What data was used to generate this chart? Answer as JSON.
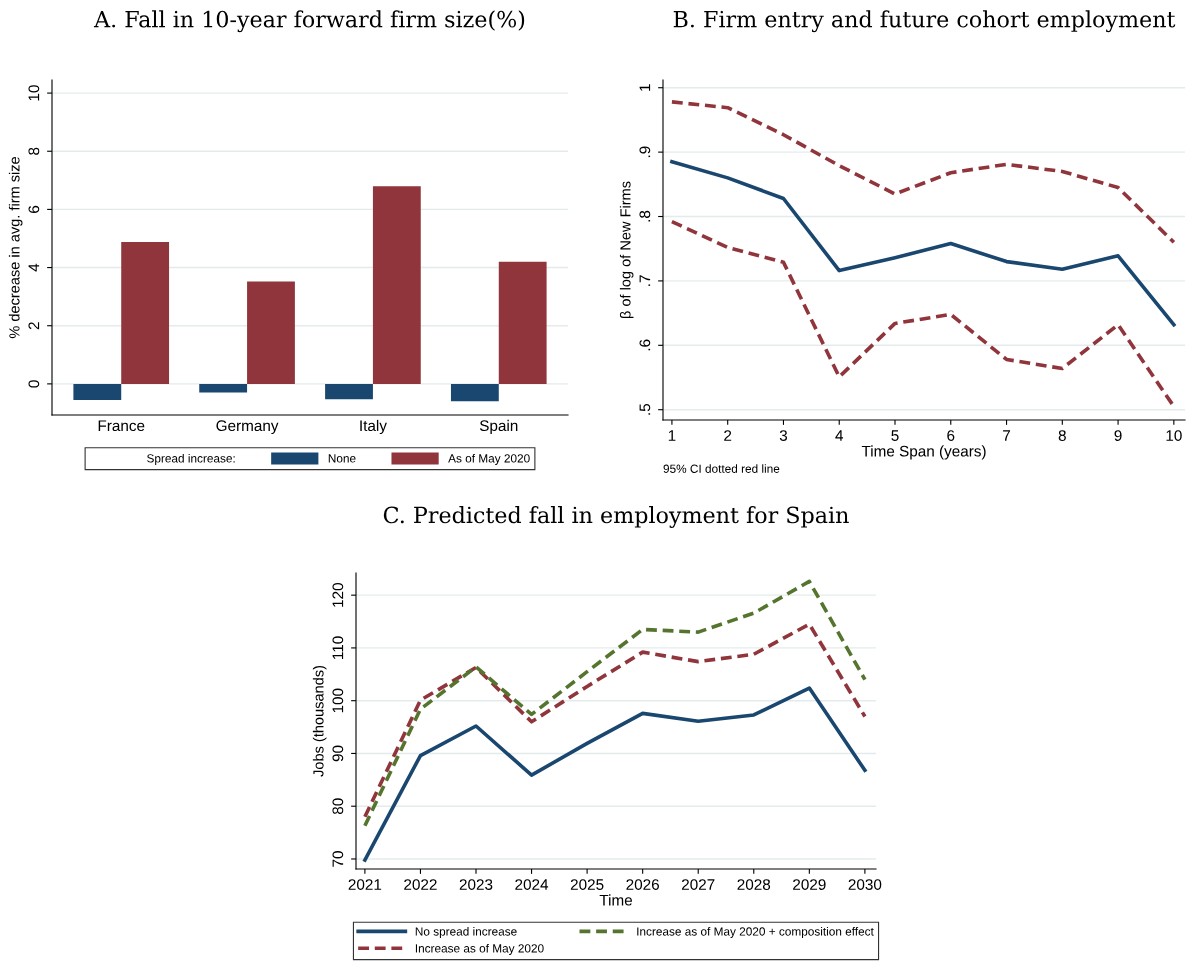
{
  "chart_data": [
    {
      "type": "bar",
      "title": "A. Fall in 10-year forward firm size(%)",
      "ylabel": "% decrease in avg. firm size",
      "categories": [
        "France",
        "Germany",
        "Italy",
        "Spain"
      ],
      "series": [
        {
          "name": "None",
          "color": "#1a476f",
          "values": [
            -0.55,
            -0.3,
            -0.53,
            -0.6
          ]
        },
        {
          "name": "As of May 2020",
          "color": "#90353b",
          "values": [
            4.88,
            3.52,
            6.8,
            4.2
          ]
        }
      ],
      "legend_title": "Spread increase:",
      "legend": "bottom",
      "ylim": [
        -1.07,
        10.45
      ],
      "yticks": [
        0,
        2,
        4,
        6,
        8,
        10
      ],
      "grid": "y"
    },
    {
      "type": "line",
      "title": "B. Firm entry and future cohort employment",
      "xlabel": "Time Span (years)",
      "ylabel": "β of log of New Firms",
      "x": [
        1,
        2,
        3,
        4,
        5,
        6,
        7,
        8,
        9,
        10
      ],
      "series": [
        {
          "color": "#1a476f",
          "line_style": "solid",
          "values": [
            0.885,
            0.86,
            0.828,
            0.716,
            0.736,
            0.758,
            0.73,
            0.718,
            0.739,
            0.632
          ]
        },
        {
          "color": "#90353b",
          "line_style": "dashed",
          "values": [
            0.978,
            0.969,
            0.927,
            0.879,
            0.835,
            0.868,
            0.881,
            0.87,
            0.845,
            0.76
          ]
        },
        {
          "color": "#90353b",
          "line_style": "dashed",
          "values": [
            0.792,
            0.752,
            0.729,
            0.551,
            0.634,
            0.648,
            0.578,
            0.564,
            0.632,
            0.505
          ]
        }
      ],
      "annotations": [
        "95% CI dotted red line"
      ],
      "xlim": [
        0.84,
        10.2
      ],
      "xticks": [
        1,
        2,
        3,
        4,
        5,
        6,
        7,
        8,
        9,
        10
      ],
      "ylim": [
        0.484,
        1.012
      ],
      "yticks": [
        {
          "value": 0.5,
          "label": ".5"
        },
        {
          "value": 0.6,
          "label": ".6"
        },
        {
          "value": 0.7,
          "label": ".7"
        },
        {
          "value": 0.8,
          "label": ".8"
        },
        {
          "value": 0.9,
          "label": ".9"
        },
        {
          "value": 1,
          "label": "1"
        }
      ],
      "grid": "y"
    },
    {
      "type": "line",
      "title": "C. Predicted fall in employment for Spain",
      "xlabel": "Time",
      "ylabel": "Jobs (thousands)",
      "x": [
        2021,
        2022,
        2023,
        2024,
        2025,
        2026,
        2027,
        2028,
        2029,
        2030
      ],
      "series": [
        {
          "name": "No spread increase",
          "color": "#1a476f",
          "line_style": "solid",
          "values": [
            69.8,
            89.6,
            95.2,
            85.9,
            91.9,
            97.6,
            96.1,
            97.3,
            102.4,
            86.8
          ]
        },
        {
          "name": "Increase as of May 2020",
          "color": "#90353b",
          "line_style": "dashed",
          "values": [
            78,
            100.1,
            106.3,
            96,
            102.7,
            109.2,
            107.4,
            108.8,
            114.5,
            97
          ]
        },
        {
          "name": "Increase as of May 2020 + composition effect",
          "color": "#55752f",
          "line_style": "dashed",
          "values": [
            76.3,
            98.4,
            106.4,
            97.4,
            105.5,
            113.5,
            113,
            116.6,
            122.6,
            104
          ]
        }
      ],
      "legend": "bottom",
      "xlim": [
        2020.84,
        2030.2
      ],
      "xticks": [
        2021,
        2022,
        2023,
        2024,
        2025,
        2026,
        2027,
        2028,
        2029,
        2030
      ],
      "ylim": [
        68.1,
        124.2
      ],
      "yticks": [
        70,
        80,
        90,
        100,
        110,
        120
      ],
      "grid": "y"
    }
  ]
}
